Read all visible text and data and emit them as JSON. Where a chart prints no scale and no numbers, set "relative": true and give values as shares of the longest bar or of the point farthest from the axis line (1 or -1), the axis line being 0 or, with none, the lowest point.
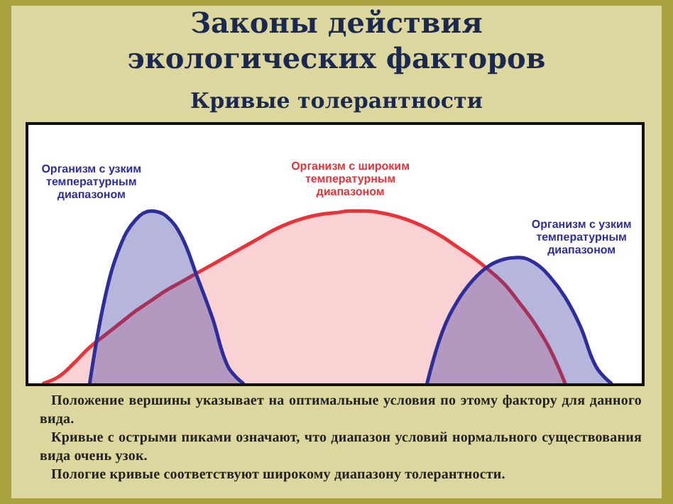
{
  "chart_data": {
    "type": "area",
    "title": "Законы действия\nэкологических факторов",
    "subtitle": "Кривые толерантности",
    "relative": true,
    "categories": [
      null,
      null,
      null,
      null,
      null,
      null,
      null,
      null,
      null,
      null,
      null,
      null,
      null,
      null,
      null,
      null,
      null,
      null,
      null,
      null,
      null,
      null,
      null,
      null,
      null,
      null,
      null,
      null,
      null,
      null,
      null,
      null,
      null,
      null,
      null,
      null,
      null,
      null,
      null,
      null,
      null
    ],
    "series": [
      {
        "name": "Организм с широким температурным диапазоном",
        "color": "#e8333a",
        "values": [
          null,
          0,
          0.04,
          0.12,
          0.21,
          0.28,
          0.35,
          0.42,
          0.48,
          0.54,
          0.59,
          0.64,
          0.69,
          0.74,
          0.79,
          0.84,
          0.89,
          0.93,
          0.96,
          0.98,
          0.99,
          1,
          1,
          0.99,
          0.97,
          0.94,
          0.9,
          0.85,
          0.79,
          0.73,
          0.66,
          0.58,
          0.47,
          0.35,
          0.2,
          0,
          null,
          null,
          null,
          null,
          null
        ]
      },
      {
        "name": "Организм с узким температурным диапазоном",
        "color": "#2e2e9a",
        "values": [
          null,
          null,
          null,
          null,
          0,
          0.5,
          0.8,
          0.95,
          1,
          0.97,
          0.85,
          0.62,
          0.38,
          0.1,
          0,
          null,
          null,
          null,
          null,
          null,
          null,
          null,
          null,
          null,
          null,
          null,
          null,
          null,
          null,
          null,
          null,
          null,
          null,
          null,
          null,
          null,
          null,
          null,
          null,
          null,
          null
        ]
      },
      {
        "name": "Организм с узким температурным диапазоном",
        "color": "#2e2e9a",
        "values": [
          null,
          null,
          null,
          null,
          null,
          null,
          null,
          null,
          null,
          null,
          null,
          null,
          null,
          null,
          null,
          null,
          null,
          null,
          null,
          null,
          null,
          null,
          null,
          null,
          null,
          null,
          0,
          0.3,
          0.48,
          0.6,
          0.68,
          0.72,
          0.73,
          0.7,
          0.62,
          0.5,
          0.33,
          0.1,
          0,
          null,
          null
        ]
      }
    ],
    "annotations": [
      "Положение вершины указывает на оптимальные условия по этому фактору для данного вида.",
      "Кривые с острыми пиками означают, что диапазон условий нормального существования вида очень узок.",
      "Пологие кривые соответствуют широкому диапазону толерантности."
    ]
  }
}
